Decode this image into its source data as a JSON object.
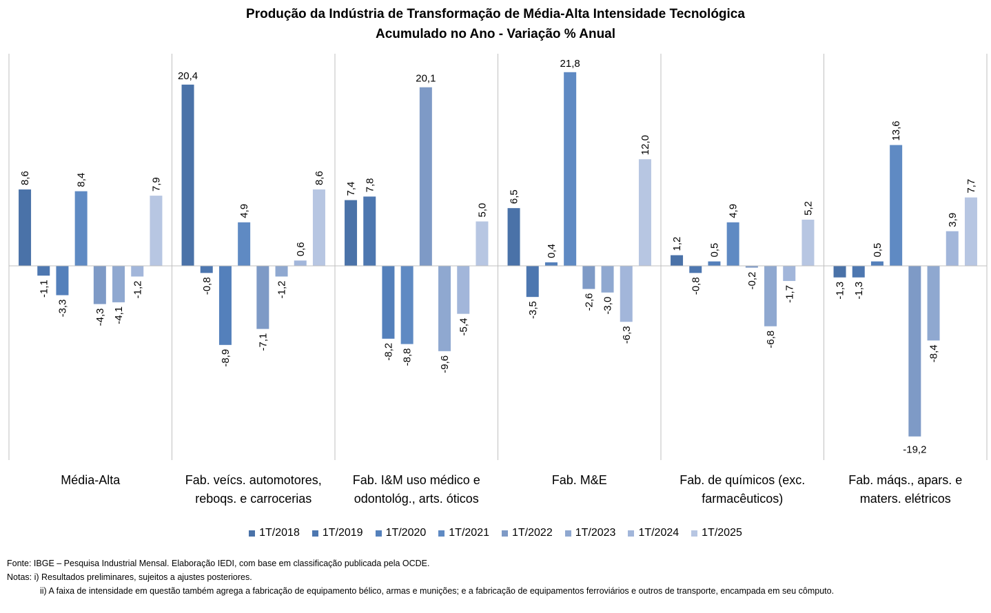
{
  "title": "Produção da Indústria de Transformação de Média-Alta Intensidade Tecnológica",
  "subtitle": "Acumulado no Ano - Variação % Anual",
  "source": "Fonte: IBGE – Pesquisa Industrial Mensal. Elaboração IEDI, com base em classificação publicada pela OCDE.",
  "note1": "Notas: i) Resultados preliminares, sujeitos a ajustes posteriores.",
  "note2": "ii) A faixa de intensidade em questão também  agrega a fabricação de equipamento  bélico, armas e munições; e a fabricação de equipamentos  ferroviários e outros de transporte,  encampada em seu cômputo.",
  "chart_data": {
    "type": "bar",
    "categories": [
      [
        "Média-Alta"
      ],
      [
        "Fab. veícs. automotores,",
        "reboqs. e carrocerias"
      ],
      [
        "Fab. I&M uso médico e",
        "odontológ., arts. óticos"
      ],
      [
        "Fab. M&E"
      ],
      [
        "Fab. de químicos (exc.",
        "farmacêuticos)"
      ],
      [
        "Fab. máqs., apars. e",
        "maters. elétricos"
      ]
    ],
    "series": [
      {
        "name": "1T/2018",
        "color": "#4a72a8",
        "values": [
          8.6,
          20.4,
          7.4,
          6.5,
          1.2,
          -1.3
        ]
      },
      {
        "name": "1T/2019",
        "color": "#4d77b0",
        "values": [
          -1.1,
          -0.8,
          7.8,
          -3.5,
          -0.8,
          -1.3
        ]
      },
      {
        "name": "1T/2020",
        "color": "#5480bb",
        "values": [
          -3.3,
          -8.9,
          -8.2,
          0.4,
          0.5,
          0.5
        ]
      },
      {
        "name": "1T/2021",
        "color": "#5f8ac3",
        "values": [
          8.4,
          4.9,
          -8.8,
          21.8,
          4.9,
          13.6
        ]
      },
      {
        "name": "1T/2022",
        "color": "#7e9ac6",
        "values": [
          -4.3,
          -7.1,
          20.1,
          -2.6,
          -0.2,
          -19.2
        ]
      },
      {
        "name": "1T/2023",
        "color": "#8fa8d0",
        "values": [
          -4.1,
          -1.2,
          -9.6,
          -3.0,
          -6.8,
          -8.4
        ]
      },
      {
        "name": "1T/2024",
        "color": "#a2b6da",
        "values": [
          -1.2,
          0.6,
          -5.4,
          -6.3,
          -1.7,
          3.9
        ]
      },
      {
        "name": "1T/2025",
        "color": "#b7c6e2",
        "values": [
          7.9,
          8.6,
          5.0,
          12.0,
          5.2,
          7.7
        ]
      }
    ],
    "data_labels": true,
    "decimal_separator": ",",
    "legend_position": "bottom",
    "grid": false
  }
}
